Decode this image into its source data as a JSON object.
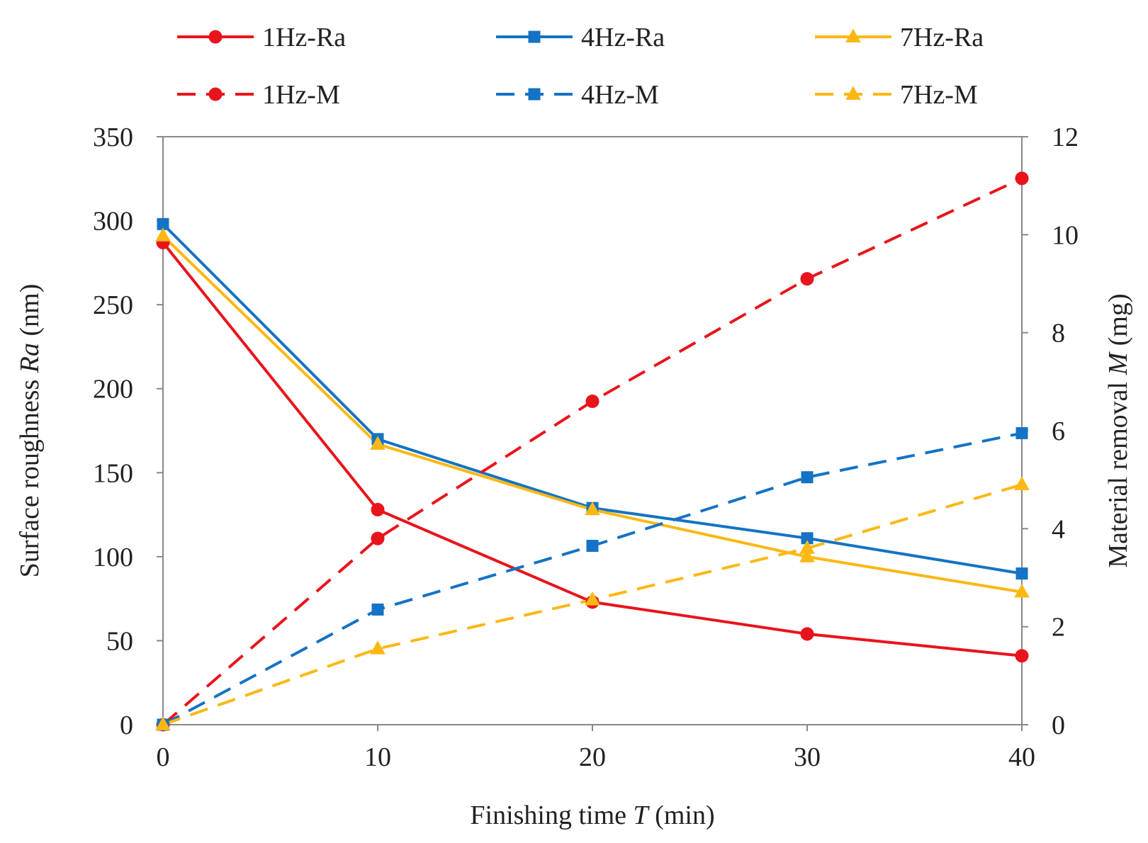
{
  "chart_data": {
    "type": "line",
    "x": [
      0,
      10,
      20,
      30,
      40
    ],
    "xlabel": {
      "prefix": "Finishing time ",
      "italic": "T",
      "suffix": " (min)"
    },
    "ylabel_left": {
      "prefix": "Surface roughness ",
      "italic": "Ra",
      "suffix": " (nm)"
    },
    "ylabel_right": {
      "prefix": "Material removal ",
      "italic": "M",
      "suffix": " (mg)"
    },
    "xlim": [
      0,
      40
    ],
    "ylim_left": [
      0,
      350
    ],
    "ylim_right": [
      0,
      12
    ],
    "xticks": [
      0,
      10,
      20,
      30,
      40
    ],
    "yticks_left": [
      0,
      50,
      100,
      150,
      200,
      250,
      300,
      350
    ],
    "yticks_right": [
      0,
      2,
      4,
      6,
      8,
      10,
      12
    ],
    "grid": false,
    "legend_position": "top",
    "series": [
      {
        "name": "1Hz-Ra",
        "axis": "left",
        "color": "#e8141c",
        "marker": "circle",
        "dash": "solid",
        "values": [
          287,
          128,
          73,
          54,
          41
        ]
      },
      {
        "name": "4Hz-Ra",
        "axis": "left",
        "color": "#1473c4",
        "marker": "square",
        "dash": "solid",
        "values": [
          298,
          170,
          129,
          111,
          90
        ]
      },
      {
        "name": "7Hz-Ra",
        "axis": "left",
        "color": "#fbb814",
        "marker": "triangle",
        "dash": "solid",
        "values": [
          291,
          167,
          128,
          100,
          79
        ]
      },
      {
        "name": "1Hz-M",
        "axis": "right",
        "color": "#e8141c",
        "marker": "circle",
        "dash": "dashed",
        "values": [
          0,
          3.8,
          6.6,
          9.1,
          11.15
        ]
      },
      {
        "name": "4Hz-M",
        "axis": "right",
        "color": "#1473c4",
        "marker": "square",
        "dash": "dashed",
        "values": [
          0,
          2.35,
          3.65,
          5.05,
          5.95
        ]
      },
      {
        "name": "7Hz-M",
        "axis": "right",
        "color": "#fbb814",
        "marker": "triangle",
        "dash": "dashed",
        "values": [
          0,
          1.55,
          2.55,
          3.6,
          4.9
        ]
      }
    ]
  }
}
